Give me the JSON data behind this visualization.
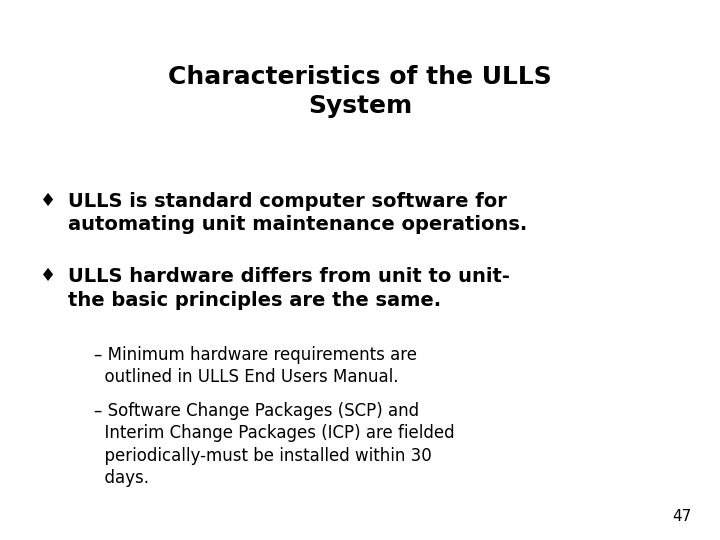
{
  "title_line1": "Characteristics of the ULLS",
  "title_line2": "System",
  "background_color": "#ffffff",
  "text_color": "#000000",
  "bullet_char": "♦",
  "bullet1_line1": "ULLS is standard computer software for",
  "bullet1_line2": "automating unit maintenance operations.",
  "bullet2_line1": "ULLS hardware differs from unit to unit-",
  "bullet2_line2": "the basic principles are the same.",
  "sub1_line1": "– Minimum hardware requirements are",
  "sub1_line2": "  outlined in ULLS End Users Manual.",
  "sub2_line1": "– Software Change Packages (SCP) and",
  "sub2_line2": "  Interim Change Packages (ICP) are fielded",
  "sub2_line3": "  periodically-must be installed within 30",
  "sub2_line4": "  days.",
  "page_number": "47",
  "title_fontsize": 18,
  "bullet_fontsize": 14,
  "sub_fontsize": 12,
  "page_fontsize": 11
}
